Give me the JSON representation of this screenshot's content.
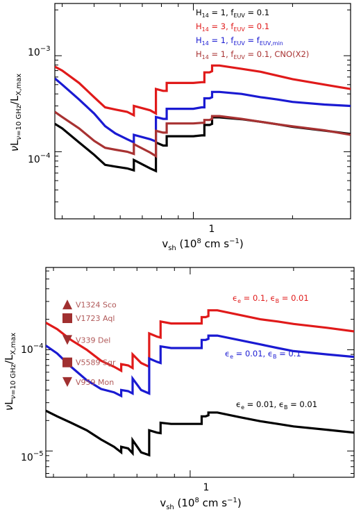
{
  "colors": {
    "black": "#000000",
    "red": "#e01a1a",
    "blue": "#1a1ad2",
    "brown": "#a83232",
    "marker": "#a03030",
    "marker_text": "#b05858"
  },
  "chart_data": [
    {
      "type": "line",
      "xscale": "log",
      "yscale": "log",
      "xlim": [
        0.38,
        3.0
      ],
      "ylim": [
        2e-05,
        0.0035
      ],
      "xlabel": "v_sh (10^8 cm s^-1)",
      "ylabel": "νL_ν=10 GHz/L_X,max",
      "xtick_labels": [
        "1"
      ],
      "ytick_labels": [
        "10^-4",
        "10^-3"
      ],
      "legend_position": "top-right",
      "legend": [
        "H14 = 1, fEUV = 0.1",
        "H14 = 3, fEUV = 0.1",
        "H14 = 1, fEUV = fEUV,min",
        "H14 = 1, fEUV = 0.1, CNO(X2)"
      ],
      "series": [
        {
          "name": "H14 = 1, fEUV = 0.1",
          "color": "black",
          "x": [
            0.38,
            0.4,
            0.45,
            0.5,
            0.54,
            0.58,
            0.63,
            0.66,
            0.66,
            0.74,
            0.77,
            0.77,
            0.81,
            0.83,
            0.83,
            0.88,
            0.93,
            1.0,
            1.06,
            1.08,
            1.08,
            1.12,
            1.14,
            1.14,
            1.2,
            1.4,
            1.6,
            1.8,
            2.0,
            2.5,
            3.0
          ],
          "y": [
            0.000195,
            0.000175,
            0.000125,
            9.3e-05,
            7.3e-05,
            7e-05,
            6.7e-05,
            6.4e-05,
            8.2e-05,
            6.7e-05,
            6.3e-05,
            0.000125,
            0.000116,
            0.000116,
            0.000145,
            0.000145,
            0.000145,
            0.000145,
            0.000148,
            0.000148,
            0.00019,
            0.00019,
            0.000195,
            0.000228,
            0.000228,
            0.000218,
            0.000205,
            0.000193,
            0.000182,
            0.000166,
            0.000153
          ]
        },
        {
          "name": "H14 = 3, fEUV = 0.1",
          "color": "red",
          "x": [
            0.38,
            0.4,
            0.45,
            0.5,
            0.54,
            0.58,
            0.63,
            0.66,
            0.66,
            0.74,
            0.77,
            0.77,
            0.81,
            0.83,
            0.83,
            0.88,
            0.93,
            1.0,
            1.06,
            1.08,
            1.08,
            1.12,
            1.14,
            1.14,
            1.2,
            1.4,
            1.6,
            1.8,
            2.0,
            2.5,
            3.0
          ],
          "y": [
            0.00077,
            0.0007,
            0.00052,
            0.00037,
            0.00029,
            0.000275,
            0.00026,
            0.00024,
            0.0003,
            0.00027,
            0.00025,
            0.00045,
            0.00043,
            0.00043,
            0.00052,
            0.00052,
            0.00052,
            0.00052,
            0.00053,
            0.00053,
            0.00067,
            0.00067,
            0.00069,
            0.00079,
            0.00079,
            0.00073,
            0.00068,
            0.00062,
            0.00057,
            0.0005,
            0.00045
          ]
        },
        {
          "name": "H14 = 1, fEUV = fEUV,min",
          "color": "blue",
          "x": [
            0.38,
            0.4,
            0.45,
            0.5,
            0.54,
            0.58,
            0.63,
            0.66,
            0.66,
            0.74,
            0.77,
            0.77,
            0.81,
            0.83,
            0.83,
            0.88,
            0.93,
            1.0,
            1.06,
            1.08,
            1.08,
            1.12,
            1.14,
            1.14,
            1.2,
            1.4,
            1.6,
            1.8,
            2.0,
            2.5,
            3.0
          ],
          "y": [
            0.00058,
            0.0005,
            0.00035,
            0.00025,
            0.000185,
            0.000155,
            0.000135,
            0.000125,
            0.00015,
            0.000135,
            0.000128,
            0.00023,
            0.00022,
            0.00022,
            0.00028,
            0.00028,
            0.00028,
            0.00028,
            0.00029,
            0.00029,
            0.00036,
            0.00036,
            0.00037,
            0.00042,
            0.00042,
            0.0004,
            0.00037,
            0.00035,
            0.00033,
            0.00031,
            0.0003
          ]
        },
        {
          "name": "H14 = 1, fEUV = 0.1, CNO(X2)",
          "color": "brown",
          "x": [
            0.38,
            0.4,
            0.45,
            0.5,
            0.54,
            0.58,
            0.63,
            0.66,
            0.66,
            0.74,
            0.77,
            0.77,
            0.81,
            0.83,
            0.83,
            0.88,
            0.93,
            1.0,
            1.06,
            1.08,
            1.08,
            1.12,
            1.14,
            1.14,
            1.2,
            1.4,
            1.6,
            1.8,
            2.0,
            2.5,
            3.0
          ],
          "y": [
            0.00026,
            0.00023,
            0.000175,
            0.00013,
            0.00011,
            0.000105,
            0.0001,
            9.5e-05,
            0.00012,
            9.8e-05,
            9e-05,
            0.000165,
            0.000158,
            0.000158,
            0.000197,
            0.000197,
            0.000197,
            0.000197,
            0.0002,
            0.0002,
            0.000214,
            0.000214,
            0.00022,
            0.000235,
            0.000235,
            0.00022,
            0.000205,
            0.000193,
            0.000184,
            0.000167,
            0.00015
          ]
        }
      ]
    },
    {
      "type": "line",
      "xscale": "log",
      "yscale": "log",
      "xlim": [
        0.38,
        3.0
      ],
      "ylim": [
        5.5e-06,
        0.00065
      ],
      "xlabel": "v_sh (10^8 cm s^-1)",
      "ylabel": "νL_ν=10 GHz/L_X,max",
      "xtick_labels": [
        "1"
      ],
      "ytick_labels": [
        "10^-5",
        "10^-4"
      ],
      "legend_position": "right",
      "series": [
        {
          "name": "εe = 0.1, εB = 0.01",
          "color": "red",
          "x": [
            0.38,
            0.41,
            0.45,
            0.5,
            0.55,
            0.6,
            0.63,
            0.63,
            0.66,
            0.68,
            0.68,
            0.72,
            0.76,
            0.76,
            0.8,
            0.82,
            0.82,
            0.88,
            0.95,
            1.02,
            1.08,
            1.08,
            1.11,
            1.13,
            1.13,
            1.2,
            1.4,
            1.6,
            1.8,
            2.0,
            2.5,
            3.0
          ],
          "y": [
            0.000185,
            0.00016,
            0.000125,
            0.0001,
            7.8e-05,
            6.8e-05,
            6.2e-05,
            7.2e-05,
            7e-05,
            6.6e-05,
            9e-05,
            7.4e-05,
            6.8e-05,
            0.000145,
            0.000135,
            0.000132,
            0.00019,
            0.000182,
            0.000182,
            0.000182,
            0.000182,
            0.00021,
            0.00021,
            0.000215,
            0.000245,
            0.000245,
            0.00022,
            0.0002,
            0.00019,
            0.00018,
            0.000165,
            0.000152
          ]
        },
        {
          "name": "εe = 0.01, εB = 0.1",
          "color": "blue",
          "x": [
            0.38,
            0.41,
            0.45,
            0.5,
            0.55,
            0.6,
            0.63,
            0.63,
            0.66,
            0.68,
            0.68,
            0.72,
            0.76,
            0.76,
            0.8,
            0.82,
            0.82,
            0.88,
            0.95,
            1.02,
            1.08,
            1.08,
            1.11,
            1.13,
            1.13,
            1.2,
            1.4,
            1.6,
            1.8,
            2.0,
            2.5,
            3.0
          ],
          "y": [
            0.00011,
            9.2e-05,
            6.8e-05,
            5e-05,
            4.1e-05,
            3.8e-05,
            3.5e-05,
            4e-05,
            3.9e-05,
            3.7e-05,
            5.2e-05,
            4e-05,
            3.7e-05,
            8.2e-05,
            7.6e-05,
            7.4e-05,
            0.000108,
            0.000104,
            0.000104,
            0.000104,
            0.000104,
            0.000125,
            0.000125,
            0.000128,
            0.000138,
            0.000138,
            0.000124,
            0.000113,
            0.000104,
            9.7e-05,
            9e-05,
            8.5e-05
          ]
        },
        {
          "name": "εe = 0.01, εB = 0.01",
          "color": "black",
          "x": [
            0.38,
            0.41,
            0.45,
            0.5,
            0.55,
            0.6,
            0.63,
            0.63,
            0.66,
            0.68,
            0.68,
            0.72,
            0.76,
            0.76,
            0.8,
            0.82,
            0.82,
            0.88,
            0.95,
            1.02,
            1.08,
            1.08,
            1.11,
            1.13,
            1.13,
            1.2,
            1.4,
            1.6,
            1.8,
            2.0,
            2.5,
            3.0
          ],
          "y": [
            2.5e-05,
            2.2e-05,
            1.9e-05,
            1.6e-05,
            1.3e-05,
            1.1e-05,
            9.7e-06,
            1.1e-05,
            1.06e-05,
            9.5e-06,
            1.28e-05,
            9.7e-06,
            9.1e-06,
            1.6e-05,
            1.52e-05,
            1.5e-05,
            1.9e-05,
            1.85e-05,
            1.85e-05,
            1.85e-05,
            1.85e-05,
            2.2e-05,
            2.2e-05,
            2.25e-05,
            2.4e-05,
            2.4e-05,
            2.15e-05,
            1.97e-05,
            1.85e-05,
            1.75e-05,
            1.62e-05,
            1.52e-05
          ]
        }
      ],
      "series_labels": [
        "ϵe = 0.1, ϵB = 0.01",
        "ϵe = 0.01, ϵB = 0.1",
        "ϵe = 0.01, ϵB = 0.01"
      ],
      "markers": [
        {
          "label": "V1324 Sco",
          "shape": "triangle-up",
          "y": 0.00028
        },
        {
          "label": "V1723 Aql",
          "shape": "square",
          "y": 0.000205
        },
        {
          "label": "V339 Del",
          "shape": "triangle-down",
          "y": 0.000125
        },
        {
          "label": "V5589 Sgr",
          "shape": "square",
          "y": 7.5e-05
        },
        {
          "label": "V959 Mon",
          "shape": "triangle-down",
          "y": 4.8e-05
        }
      ]
    }
  ]
}
